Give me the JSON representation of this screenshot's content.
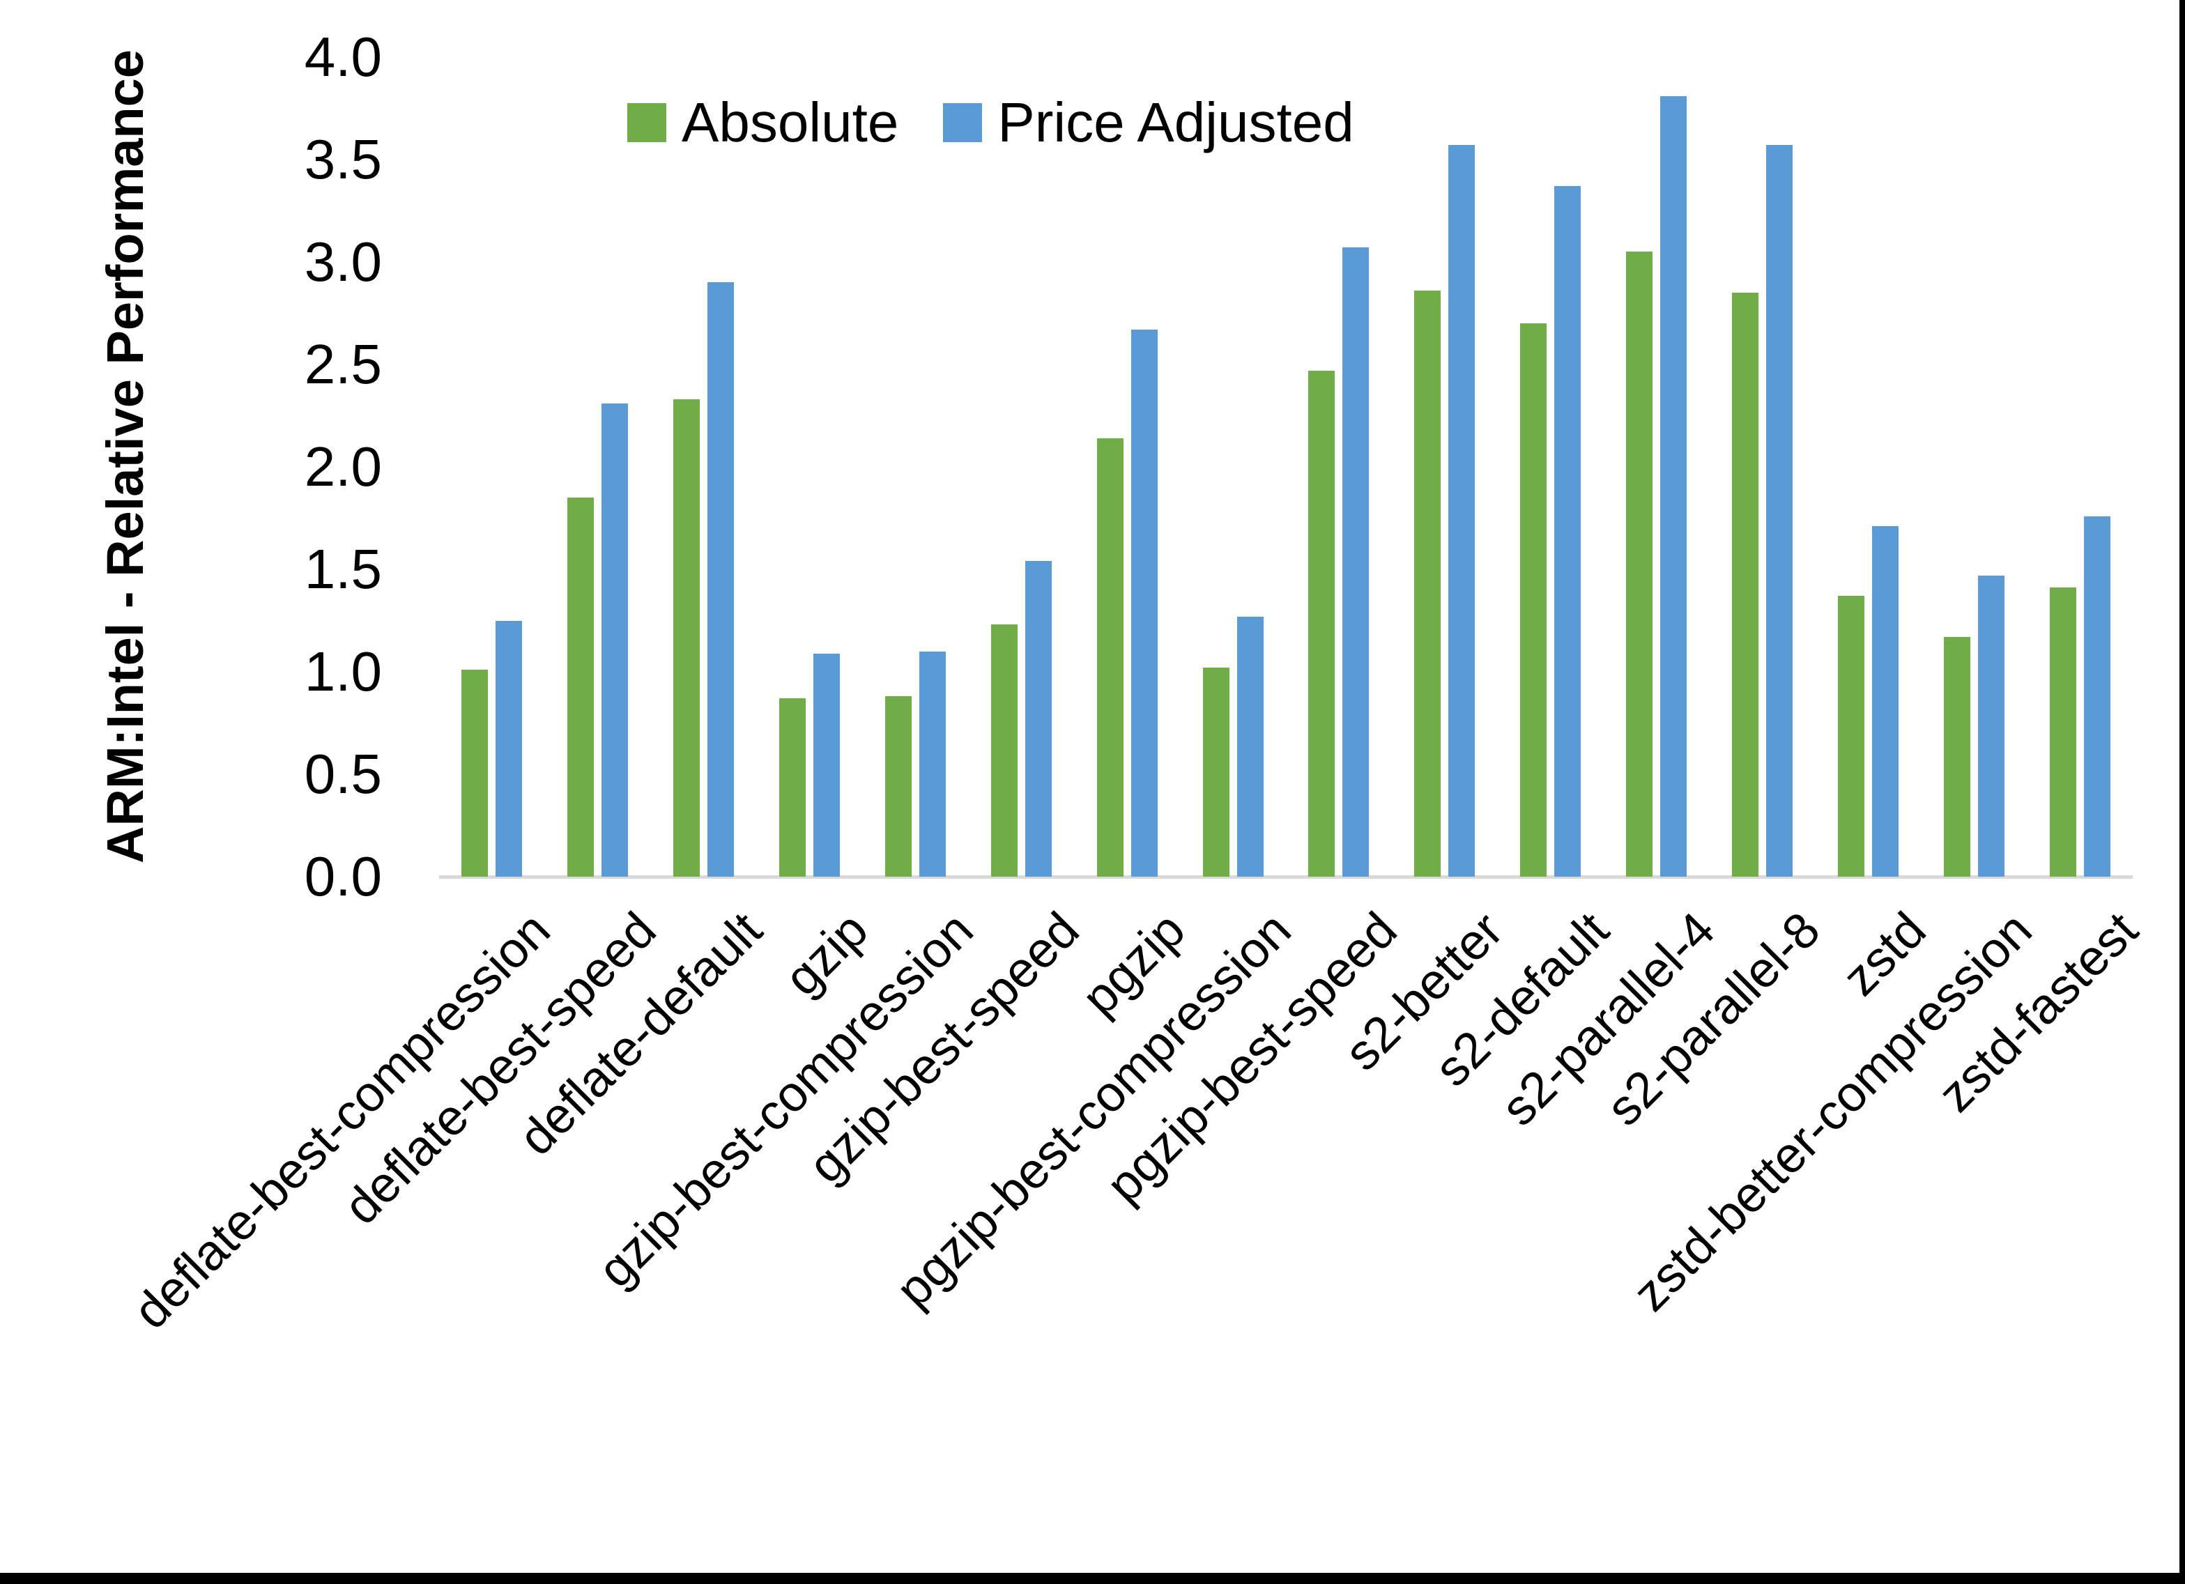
{
  "chart_data": {
    "type": "bar",
    "title": "",
    "xlabel": "",
    "ylabel": "ARM:Intel - Relative Performance",
    "ylim": [
      0.0,
      4.0
    ],
    "ytick_step": 0.5,
    "yticks": [
      "4.0",
      "3.5",
      "3.0",
      "2.5",
      "2.0",
      "1.5",
      "1.0",
      "0.5",
      "0.0"
    ],
    "grid": false,
    "legend_position": "top",
    "axis_line_color": "#D9D9D9",
    "categories": [
      "deflate-best-compression",
      "deflate-best-speed",
      "deflate-default",
      "gzip",
      "gzip-best-compression",
      "gzip-best-speed",
      "pgzip",
      "pgzip-best-compression",
      "pgzip-best-speed",
      "s2-better",
      "s2-default",
      "s2-parallel-4",
      "s2-parallel-8",
      "zstd",
      "zstd-better-compression",
      "zstd-fastest"
    ],
    "series": [
      {
        "name": "Absolute",
        "color": "#70AD47",
        "values": [
          1.01,
          1.85,
          2.33,
          0.87,
          0.88,
          1.23,
          2.14,
          1.02,
          2.47,
          2.86,
          2.7,
          3.05,
          2.85,
          1.37,
          1.17,
          1.41
        ]
      },
      {
        "name": "Price Adjusted",
        "color": "#5B9BD5",
        "values": [
          1.25,
          2.31,
          2.9,
          1.09,
          1.1,
          1.54,
          2.67,
          1.27,
          3.07,
          3.57,
          3.37,
          3.81,
          3.57,
          1.71,
          1.47,
          1.76
        ]
      }
    ]
  },
  "frame": {
    "border_color": "#000000"
  }
}
